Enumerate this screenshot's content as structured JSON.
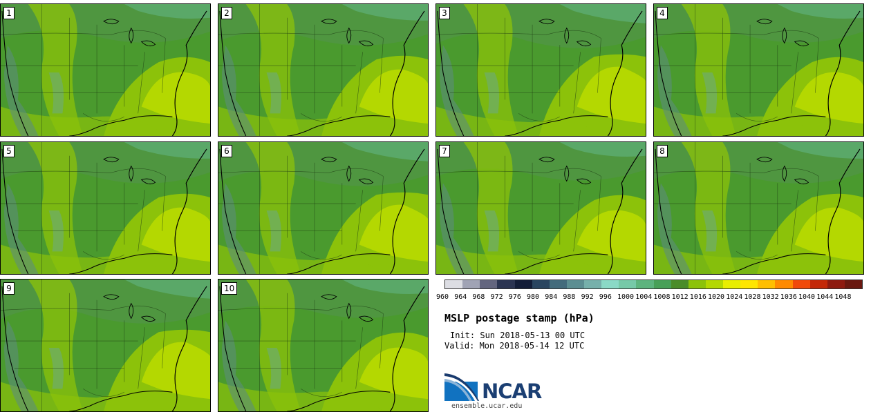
{
  "panels": [
    {
      "label": "1"
    },
    {
      "label": "2"
    },
    {
      "label": "3"
    },
    {
      "label": "4"
    },
    {
      "label": "5"
    },
    {
      "label": "6"
    },
    {
      "label": "7"
    },
    {
      "label": "8"
    },
    {
      "label": "9"
    },
    {
      "label": "10"
    }
  ],
  "colorbar": {
    "levels": [
      "960",
      "964",
      "968",
      "972",
      "976",
      "980",
      "984",
      "988",
      "992",
      "996",
      "1000",
      "1004",
      "1008",
      "1012",
      "1016",
      "1020",
      "1024",
      "1028",
      "1032",
      "1036",
      "1040",
      "1044",
      "1048"
    ],
    "colors": [
      "#dcdde3",
      "#a0a3b5",
      "#63657f",
      "#2b3452",
      "#131d38",
      "#2a4560",
      "#436b7c",
      "#5c8e92",
      "#76b0ab",
      "#8ad9c6",
      "#76c9a8",
      "#5db47e",
      "#48a058",
      "#4a8c2a",
      "#8cc20a",
      "#b4d801",
      "#e8ee00",
      "#ffe600",
      "#ffbf00",
      "#ff8a00",
      "#f04a0a",
      "#c42808",
      "#8e1a10",
      "#6a1810"
    ]
  },
  "title": "MSLP postage stamp (hPa)",
  "init": "Init: Sun 2018-05-13 00 UTC",
  "valid": "Valid: Mon 2018-05-14 12 UTC",
  "logo_text": "NCAR",
  "site": "ensemble.ucar.edu"
}
